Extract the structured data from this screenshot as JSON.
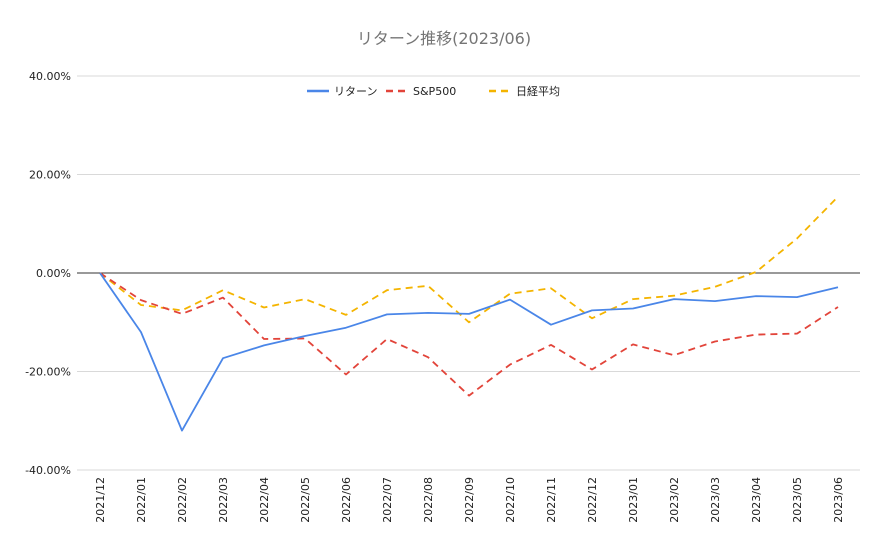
{
  "chart_data": {
    "type": "line",
    "title": "リターン推移(2023/06)",
    "xlabel": "",
    "ylabel": "",
    "ylim": [
      -40,
      40
    ],
    "yticks": [
      40,
      20,
      0,
      -20,
      -40
    ],
    "ytick_labels": [
      "40.00%",
      "20.00%",
      "0.00%",
      "-20.00%",
      "-40.00%"
    ],
    "grid": true,
    "legend_position": "top",
    "categories": [
      "2021/12",
      "2022/01",
      "2022/02",
      "2022/03",
      "2022/04",
      "2022/05",
      "2022/06",
      "2022/07",
      "2022/08",
      "2022/09",
      "2022/10",
      "2022/11",
      "2022/12",
      "2023/01",
      "2023/02",
      "2023/03",
      "2023/04",
      "2023/05",
      "2023/06"
    ],
    "series": [
      {
        "name": "リターン",
        "color": "#4a86e8",
        "dash": "solid",
        "values": [
          0,
          -12,
          -32,
          -17.3,
          -14.7,
          -12.8,
          -11.1,
          -8.4,
          -8.1,
          -8.3,
          -5.4,
          -10.5,
          -7.6,
          -7.2,
          -5.3,
          -5.7,
          -4.7,
          -4.9,
          -2.9
        ]
      },
      {
        "name": "S&P500",
        "color": "#e2443a",
        "dash": "dashed",
        "values": [
          0,
          -5.5,
          -8.3,
          -5,
          -13.4,
          -13.3,
          -20.6,
          -13.4,
          -17.1,
          -24.9,
          -18.6,
          -14.6,
          -19.6,
          -14.5,
          -16.7,
          -13.9,
          -12.5,
          -12.3,
          -6.9
        ]
      },
      {
        "name": "日経平均",
        "color": "#f4b400",
        "dash": "dashed",
        "values": [
          0,
          -6.5,
          -7.6,
          -3.5,
          -7,
          -5.3,
          -8.5,
          -3.5,
          -2.6,
          -10,
          -4.2,
          -3.1,
          -9.2,
          -5.3,
          -4.6,
          -2.8,
          0.2,
          7,
          15.5
        ]
      }
    ]
  }
}
